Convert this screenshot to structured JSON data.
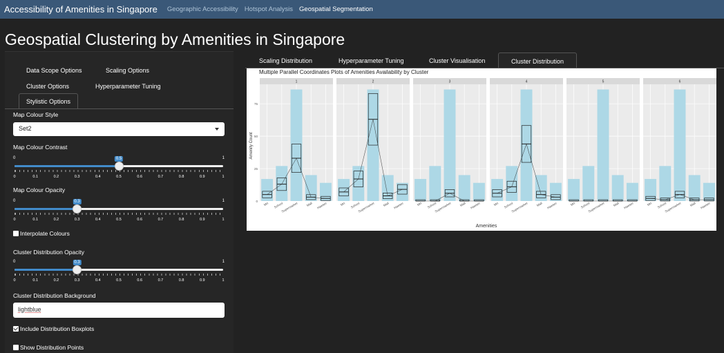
{
  "navbar": {
    "brand": "Accessibility of Amenities in Singapore",
    "links": [
      "Geographic Accessibility",
      "Hotspot Analysis",
      "Geospatial Segmentation"
    ]
  },
  "page_title": "Geospatial Clustering by Amenities in Singapore",
  "sidebar": {
    "tabs": [
      "Data Scope Options",
      "Scaling Options",
      "Cluster Options",
      "Hyperparameter Tuning",
      "Stylistic Options"
    ],
    "map_colour_style": {
      "label": "Map Colour Style",
      "value": "Set2"
    },
    "map_colour_contrast": {
      "label": "Map Colour Contrast",
      "min": "0",
      "max": "1",
      "value": 0.5,
      "value_label": "0.5"
    },
    "map_colour_opacity": {
      "label": "Map Colour Opacity",
      "min": "0",
      "max": "1",
      "value": 0.3,
      "value_label": "0.3"
    },
    "interpolate_colours": {
      "label": "Interpolate Colours",
      "checked": false
    },
    "cluster_distribution_opacity": {
      "label": "Cluster Distribution Opacity",
      "min": "0",
      "max": "1",
      "value": 0.3,
      "value_label": "0.3"
    },
    "cluster_distribution_background": {
      "label": "Cluster Distribution Background",
      "value": "lightblue"
    },
    "include_boxplots": {
      "label": "Include Distribution Boxplots",
      "checked": true
    },
    "show_points": {
      "label": "Show Distribution Points",
      "checked": false
    },
    "slider_ticks": [
      "0",
      "0.1",
      "0.2",
      "0.3",
      "0.4",
      "0.5",
      "0.6",
      "0.7",
      "0.8",
      "0.9",
      "1"
    ]
  },
  "main_tabs": [
    "Scaling Distribution",
    "Hyperparameter Tuning",
    "Cluster Visualisation",
    "Cluster Distribution"
  ],
  "colors": {
    "navbar": "#3a5878",
    "accent": "#428bca",
    "bar_fill": "#add8e6",
    "panel_bg": "#ebebeb"
  },
  "chart_data": {
    "type": "bar",
    "title": "Multiple Parallel Coordinates Plots of Amenities Availability by Cluster",
    "xlabel": "Amenities",
    "ylabel": "Amenity Count",
    "categories": [
      "Mrt",
      "School",
      "Supermarket",
      "Mall",
      "Hawker"
    ],
    "ylim": [
      0,
      90
    ],
    "yticks": [
      0,
      25,
      50,
      75
    ],
    "ytick_labels": [
      "0",
      "25",
      "50",
      "75"
    ],
    "background_bars": [
      17,
      27,
      86,
      20,
      14
    ],
    "facets": [
      {
        "label": "1",
        "median": [
          5,
          13,
          33,
          3,
          2
        ]
      },
      {
        "label": "2",
        "median": [
          7,
          17,
          63,
          4,
          9
        ]
      },
      {
        "label": "3",
        "median": [
          0,
          0,
          6,
          0,
          0
        ]
      },
      {
        "label": "4",
        "median": [
          6,
          11,
          44,
          5,
          3
        ]
      },
      {
        "label": "5",
        "median": [
          0,
          0,
          0,
          0,
          0
        ]
      },
      {
        "label": "6",
        "median": [
          2,
          1,
          5,
          1,
          1
        ]
      }
    ],
    "grid": true
  }
}
